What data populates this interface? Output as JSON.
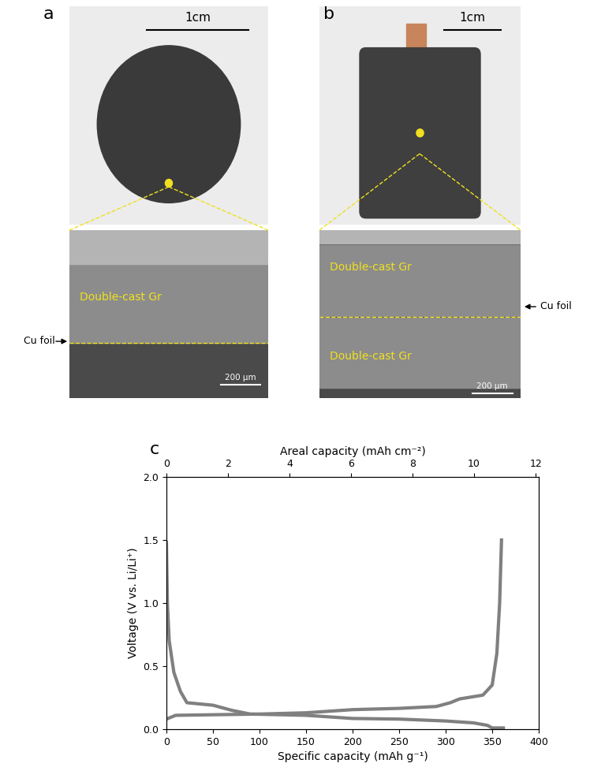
{
  "panels": [
    {
      "label": "a",
      "photo_scale_bar": "1cm",
      "sem_layers": [
        "Double-cast Gr"
      ],
      "sem_arrow": "Cu foil",
      "sem_scale_bar": "200 µm"
    },
    {
      "label": "b",
      "photo_scale_bar": "1cm",
      "sem_layers": [
        "Double-cast Gr",
        "Double-cast Gr"
      ],
      "sem_arrow": "Cu foil",
      "sem_scale_bar": "200 µm"
    }
  ],
  "chart_data": {
    "label": "c",
    "type": "line",
    "x_label": "Specific capacity (mAh g⁻¹)",
    "x2_label": "Areal capacity (mAh cm⁻²)",
    "y_label": "Voltage (V vs. Li/Li⁺)",
    "xlim": [
      0,
      400
    ],
    "xticks": [
      0,
      50,
      100,
      150,
      200,
      250,
      300,
      350,
      400
    ],
    "x2lim": [
      0,
      12.1
    ],
    "x2ticks": [
      0,
      2,
      4,
      6,
      8,
      10,
      12
    ],
    "ylim": [
      0,
      2.0
    ],
    "yticks": [
      {
        "value": 0.0,
        "label": "0.0"
      },
      {
        "value": 0.5,
        "label": "0.5"
      },
      {
        "value": 1.0,
        "label": "1.0"
      },
      {
        "value": 1.5,
        "label": "1.5"
      },
      {
        "value": 2.0,
        "label": "2.0"
      }
    ],
    "series": [
      {
        "color": "#808080",
        "x": [
          0,
          1,
          3,
          8,
          15,
          22,
          50,
          70,
          90,
          150,
          200,
          250,
          300,
          330,
          345,
          350,
          362
        ],
        "values": [
          1.48,
          1.0,
          0.7,
          0.45,
          0.3,
          0.21,
          0.19,
          0.15,
          0.12,
          0.11,
          0.085,
          0.08,
          0.065,
          0.05,
          0.03,
          0.01,
          0.01
        ]
      },
      {
        "color": "#808080",
        "x": [
          0,
          10,
          100,
          150,
          200,
          250,
          290,
          305,
          315,
          340,
          350,
          355,
          358,
          360
        ],
        "values": [
          0.08,
          0.11,
          0.12,
          0.13,
          0.155,
          0.165,
          0.18,
          0.21,
          0.24,
          0.27,
          0.35,
          0.6,
          1.0,
          1.5
        ]
      }
    ]
  }
}
